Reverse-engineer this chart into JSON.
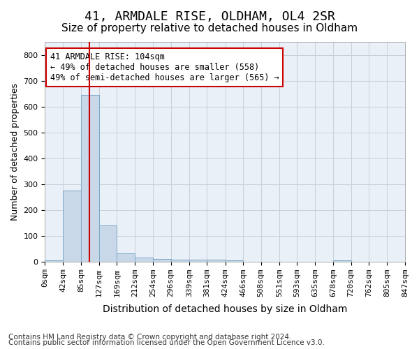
{
  "title": "41, ARMDALE RISE, OLDHAM, OL4 2SR",
  "subtitle": "Size of property relative to detached houses in Oldham",
  "xlabel": "Distribution of detached houses by size in Oldham",
  "ylabel": "Number of detached properties",
  "footnote1": "Contains HM Land Registry data © Crown copyright and database right 2024.",
  "footnote2": "Contains public sector information licensed under the Open Government Licence v3.0.",
  "annotation_line1": "41 ARMDALE RISE: 104sqm",
  "annotation_line2": "← 49% of detached houses are smaller (558)",
  "annotation_line3": "49% of semi-detached houses are larger (565) →",
  "property_size_sqm": 104,
  "bar_edges": [
    0,
    42,
    85,
    127,
    169,
    212,
    254,
    296,
    339,
    381,
    424,
    466,
    508,
    551,
    593,
    635,
    678,
    720,
    762,
    805,
    847
  ],
  "bar_heights": [
    5,
    275,
    645,
    140,
    32,
    15,
    10,
    7,
    7,
    7,
    5,
    0,
    0,
    0,
    0,
    0,
    5,
    0,
    0,
    0
  ],
  "bar_color": "#c8d8e8",
  "bar_edgecolor": "#7ba8c8",
  "redline_color": "#cc0000",
  "annotation_box_edgecolor": "#cc0000",
  "annotation_box_facecolor": "#ffffff",
  "background_color": "#ffffff",
  "axes_facecolor": "#eaf0f8",
  "grid_color": "#c8d0d8",
  "ylim": [
    0,
    850
  ],
  "yticks": [
    0,
    100,
    200,
    300,
    400,
    500,
    600,
    700,
    800
  ],
  "title_fontsize": 13,
  "subtitle_fontsize": 11,
  "xlabel_fontsize": 10,
  "ylabel_fontsize": 9,
  "tick_fontsize": 8,
  "annotation_fontsize": 8.5,
  "footnote_fontsize": 7.5
}
